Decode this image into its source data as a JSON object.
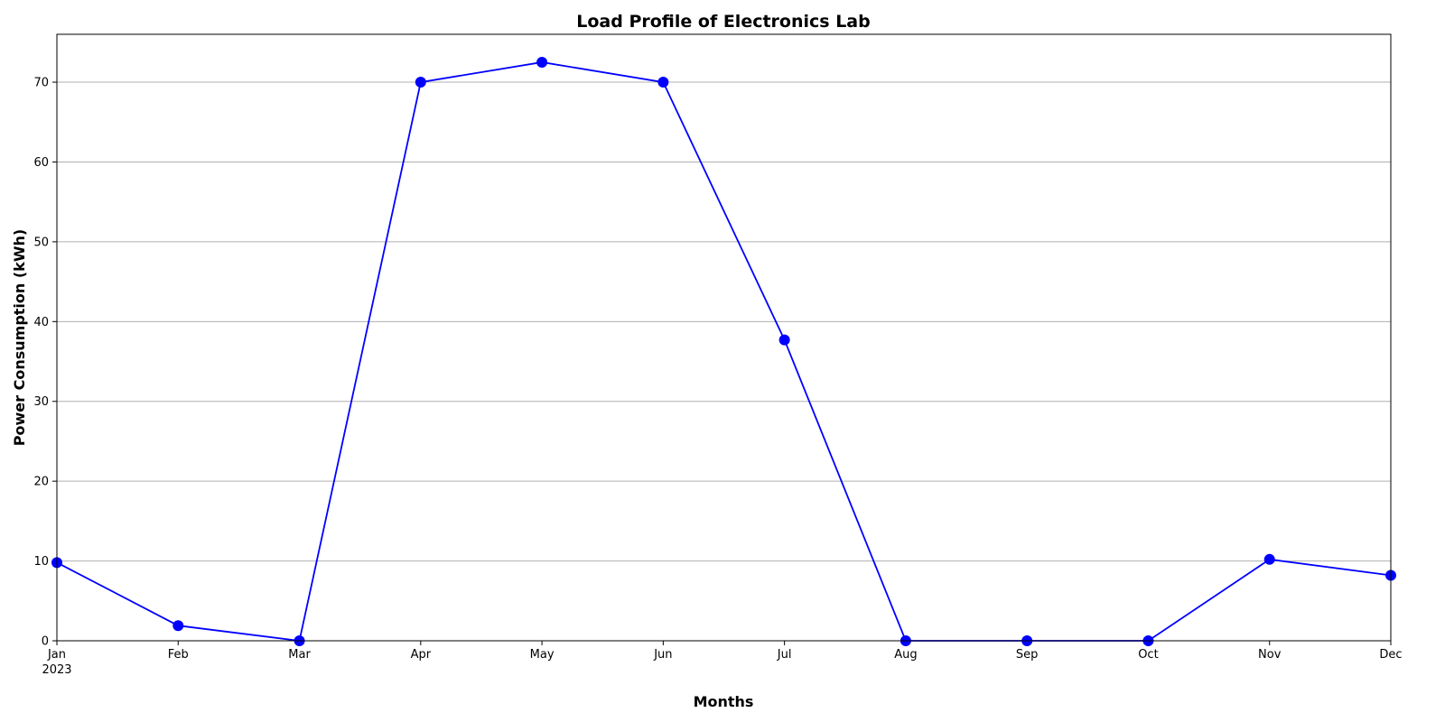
{
  "chart_data": {
    "type": "line",
    "title": "Load Profile of Electronics Lab",
    "xlabel": "Months",
    "ylabel": "Power Consumption (kWh)",
    "categories": [
      "Jan",
      "Feb",
      "Mar",
      "Apr",
      "May",
      "Jun",
      "Jul",
      "Aug",
      "Sep",
      "Oct",
      "Nov",
      "Dec"
    ],
    "year_label": "2023",
    "series": [
      {
        "values": [
          9.8,
          1.9,
          0.0,
          70.0,
          72.5,
          70.0,
          37.7,
          0.0,
          0.0,
          0.0,
          10.2,
          8.2
        ],
        "color": "#0000ff"
      }
    ],
    "ylim": [
      0,
      76
    ],
    "yticks": [
      0,
      10,
      20,
      30,
      40,
      50,
      60,
      70
    ],
    "grid": "horizontal",
    "marker": "circle"
  }
}
